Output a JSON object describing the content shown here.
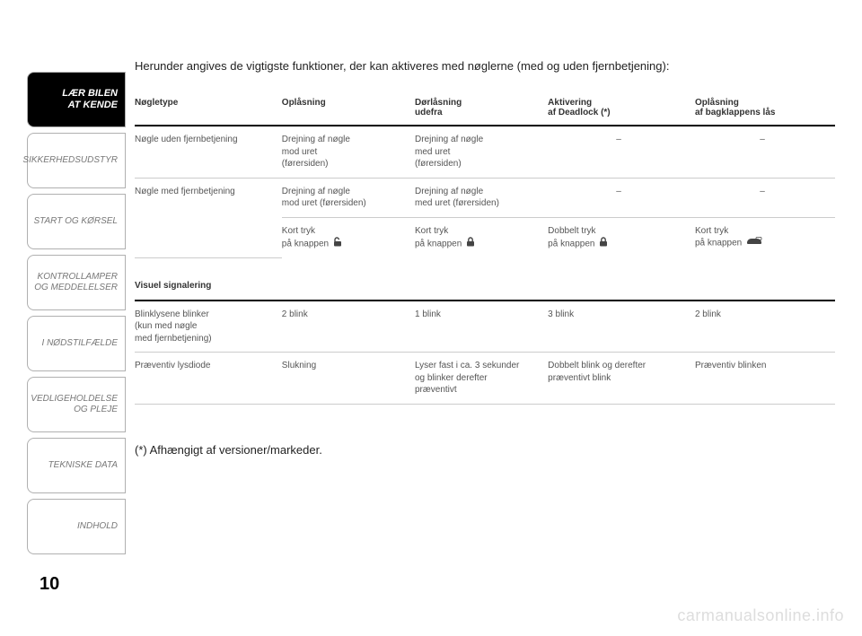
{
  "sidebar": {
    "tabs": [
      {
        "label": "LÆR BILEN\nAT KENDE",
        "active": true
      },
      {
        "label": "SIKKERHEDSUDSTYR",
        "active": false
      },
      {
        "label": "START OG KØRSEL",
        "active": false
      },
      {
        "label": "KONTROLLAMPER\nOG MEDDELELSER",
        "active": false
      },
      {
        "label": "I NØDSTILFÆLDE",
        "active": false
      },
      {
        "label": "VEDLIGEHOLDELSE\nOG PLEJE",
        "active": false
      },
      {
        "label": "TEKNISKE DATA",
        "active": false
      },
      {
        "label": "INDHOLD",
        "active": false
      }
    ]
  },
  "intro": "Herunder angives de vigtigste funktioner, der kan aktiveres med nøglerne (med og uden fjernbetjening):",
  "table": {
    "headers": {
      "c1": "Nøgletype",
      "c2": "Oplåsning",
      "c3": "Dørlåsning\nudefra",
      "c4": "Aktivering\naf Deadlock (*)",
      "c5": "Oplåsning\naf bagklappens lås"
    },
    "row1": {
      "c1": "Nøgle uden fjernbetjening",
      "c2": "Drejning af nøgle\nmod uret\n(førersiden)",
      "c3": "Drejning af nøgle\nmed uret\n(førersiden)",
      "c4": "–",
      "c5": "–"
    },
    "row2a": {
      "c1": "Nøgle med fjernbetjening",
      "c2": "Drejning af nøgle\nmod uret (førersiden)",
      "c3": "Drejning af nøgle\nmed uret (førersiden)",
      "c4": "–",
      "c5": "–"
    },
    "row2b": {
      "c2": "Kort tryk\npå knappen ",
      "c3": "Kort tryk\npå knappen ",
      "c4": "Dobbelt tryk\npå knappen ",
      "c5": "Kort tryk\npå knappen "
    },
    "section2": "Visuel signalering",
    "row3": {
      "c1": "Blinklysene blinker\n(kun med nøgle\nmed fjernbetjening)",
      "c2": "2 blink",
      "c3": "1 blink",
      "c4": "3 blink",
      "c5": "2 blink"
    },
    "row4": {
      "c1": "Præventiv lysdiode",
      "c2": "Slukning",
      "c3": "Lyser fast i ca. 3 sekunder\nog blinker derefter\npræventivt",
      "c4": "Dobbelt blink og derefter\npræventivt blink",
      "c5": "Præventiv blinken"
    }
  },
  "footnote": "(*) Afhængigt af versioner/markeder.",
  "pageNumber": "10",
  "watermark": "carmanualsonline.info",
  "icons": {
    "lockFill": "#444444",
    "carFill": "#444444"
  }
}
